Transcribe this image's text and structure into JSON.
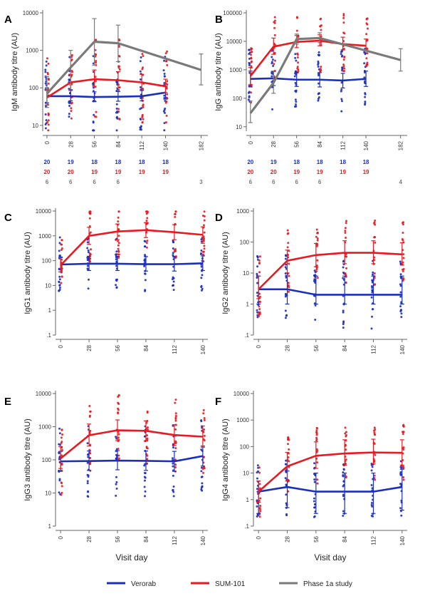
{
  "colors": {
    "verorab": "#1a2fbf",
    "sum101": "#e8191f",
    "phase1a": "#7a7a7a",
    "axis": "#666666"
  },
  "legend": [
    {
      "key": "verorab",
      "label": "Verorab"
    },
    {
      "key": "sum101",
      "label": "SUM-101"
    },
    {
      "key": "phase1a",
      "label": "Phase 1a study"
    }
  ],
  "chart_data": [
    {
      "panel": "A",
      "type": "line",
      "ylabel": "IgM antibody titre (AU)",
      "xlabel": "",
      "yscale": "log",
      "ylim": [
        7,
        10000
      ],
      "yticks": [
        "10",
        "100",
        "1000",
        "10000"
      ],
      "yticks_values": [
        10,
        100,
        1000,
        10000
      ],
      "xlim": [
        -5,
        190
      ],
      "xticks": [
        0,
        28,
        56,
        84,
        112,
        140,
        182
      ],
      "series": [
        {
          "key": "verorab",
          "x": [
            0,
            28,
            56,
            84,
            112,
            140
          ],
          "y": [
            60,
            60,
            57,
            58,
            60,
            75
          ],
          "err_low": [
            40,
            45,
            43,
            44,
            45,
            50
          ],
          "err_high": [
            100,
            85,
            78,
            80,
            85,
            110
          ]
        },
        {
          "key": "sum101",
          "x": [
            0,
            28,
            56,
            84,
            112,
            140
          ],
          "y": [
            55,
            140,
            170,
            160,
            140,
            110
          ],
          "err_low": [
            35,
            90,
            110,
            100,
            90,
            75
          ],
          "err_high": [
            85,
            230,
            300,
            270,
            230,
            170
          ]
        },
        {
          "key": "phase1a",
          "x": [
            0,
            28,
            56,
            84,
            182
          ],
          "y": [
            70,
            350,
            1700,
            1550,
            300
          ],
          "err_low": [
            30,
            120,
            400,
            500,
            120
          ],
          "err_high": [
            200,
            1000,
            7000,
            4700,
            800
          ]
        }
      ],
      "counts": [
        {
          "key": "verorab",
          "x": [
            0,
            28,
            56,
            84,
            112,
            140
          ],
          "labels": [
            "20",
            "19",
            "18",
            "18",
            "18",
            "18"
          ]
        },
        {
          "key": "sum101",
          "x": [
            0,
            28,
            56,
            84,
            112,
            140
          ],
          "labels": [
            "20",
            "20",
            "19",
            "19",
            "19",
            "19"
          ]
        },
        {
          "key": "phase1a",
          "x": [
            0,
            28,
            56,
            84,
            182
          ],
          "labels": [
            "6",
            "6",
            "6",
            "6",
            "3"
          ]
        }
      ]
    },
    {
      "panel": "B",
      "type": "line",
      "ylabel": "IgG antibody titre (AU)",
      "xlabel": "",
      "yscale": "log",
      "ylim": [
        7,
        100000
      ],
      "yticks": [
        "10",
        "100",
        "1000",
        "10000",
        "100000"
      ],
      "yticks_values": [
        10,
        100,
        1000,
        10000,
        100000
      ],
      "xlim": [
        -5,
        190
      ],
      "xticks": [
        0,
        28,
        56,
        84,
        112,
        140,
        182
      ],
      "series": [
        {
          "key": "verorab",
          "x": [
            0,
            28,
            56,
            84,
            112,
            140
          ],
          "y": [
            480,
            500,
            450,
            450,
            420,
            480
          ],
          "err_low": [
            250,
            280,
            260,
            250,
            230,
            260
          ],
          "err_high": [
            900,
            900,
            800,
            800,
            750,
            900
          ]
        },
        {
          "key": "sum101",
          "x": [
            0,
            28,
            56,
            84,
            112,
            140
          ],
          "y": [
            600,
            6500,
            9500,
            10500,
            8000,
            7000
          ],
          "err_low": [
            300,
            3500,
            6000,
            7000,
            5000,
            4500
          ],
          "err_high": [
            1200,
            13000,
            16000,
            17000,
            14000,
            12000
          ]
        },
        {
          "key": "phase1a",
          "x": [
            0,
            28,
            56,
            84,
            182
          ],
          "y": [
            30,
            350,
            12000,
            13000,
            2200
          ],
          "err_low": [
            14,
            150,
            8000,
            9000,
            900
          ],
          "err_high": [
            80,
            900,
            18000,
            20000,
            5500
          ]
        }
      ],
      "counts": [
        {
          "key": "verorab",
          "x": [
            0,
            28,
            56,
            84,
            112,
            140
          ],
          "labels": [
            "20",
            "19",
            "18",
            "18",
            "18",
            "18"
          ]
        },
        {
          "key": "sum101",
          "x": [
            0,
            28,
            56,
            84,
            112,
            140
          ],
          "labels": [
            "20",
            "20",
            "19",
            "19",
            "19",
            "19"
          ]
        },
        {
          "key": "phase1a",
          "x": [
            0,
            28,
            56,
            84,
            182
          ],
          "labels": [
            "6",
            "6",
            "6",
            "6",
            "4"
          ]
        }
      ]
    },
    {
      "panel": "C",
      "type": "line",
      "ylabel": "IgG1 antibody titre (AU)",
      "xlabel": "",
      "yscale": "log",
      "ylim": [
        0.1,
        10000
      ],
      "yticks": [
        ".1",
        "1",
        "10",
        "100",
        "1000",
        "10000"
      ],
      "yticks_values": [
        0.1,
        1,
        10,
        100,
        1000,
        10000
      ],
      "xlim": [
        -5,
        145
      ],
      "xticks": [
        0,
        28,
        56,
        84,
        112,
        140
      ],
      "series": [
        {
          "key": "verorab",
          "x": [
            0,
            28,
            56,
            84,
            112,
            140
          ],
          "y": [
            70,
            75,
            75,
            72,
            72,
            78
          ],
          "err_low": [
            35,
            40,
            40,
            38,
            38,
            40
          ],
          "err_high": [
            140,
            150,
            150,
            145,
            145,
            155
          ]
        },
        {
          "key": "sum101",
          "x": [
            0,
            28,
            56,
            84,
            112,
            140
          ],
          "y": [
            65,
            1000,
            1500,
            1700,
            1400,
            1100
          ],
          "err_low": [
            35,
            450,
            700,
            850,
            700,
            500
          ],
          "err_high": [
            130,
            2200,
            3000,
            3400,
            2800,
            2300
          ]
        }
      ]
    },
    {
      "panel": "D",
      "type": "line",
      "ylabel": "IgG2 antibody titre (AU)",
      "xlabel": "",
      "yscale": "log",
      "ylim": [
        0.1,
        1000
      ],
      "yticks": [
        ".1",
        "1",
        "10",
        "100",
        "1000"
      ],
      "yticks_values": [
        0.1,
        1,
        10,
        100,
        1000
      ],
      "xlim": [
        -5,
        145
      ],
      "xticks": [
        0,
        28,
        56,
        84,
        112,
        140
      ],
      "series": [
        {
          "key": "verorab",
          "x": [
            0,
            28,
            56,
            84,
            112,
            140
          ],
          "y": [
            3,
            3,
            2,
            2,
            2,
            2
          ],
          "err_low": [
            1,
            1,
            1,
            1,
            1,
            1
          ],
          "err_high": [
            8,
            10,
            8,
            8,
            8,
            8
          ]
        },
        {
          "key": "sum101",
          "x": [
            0,
            28,
            56,
            84,
            112,
            140
          ],
          "y": [
            3,
            25,
            38,
            45,
            45,
            40
          ],
          "err_low": [
            1.5,
            10,
            16,
            20,
            20,
            18
          ],
          "err_high": [
            8,
            55,
            90,
            110,
            110,
            95
          ]
        }
      ]
    },
    {
      "panel": "E",
      "type": "line",
      "ylabel": "IgG3 antibody titre (AU)",
      "xlabel": "Visit day",
      "yscale": "log",
      "ylim": [
        1,
        10000
      ],
      "yticks": [
        "1",
        "10",
        "100",
        "1000",
        "10000"
      ],
      "yticks_values": [
        1,
        10,
        100,
        1000,
        10000
      ],
      "xlim": [
        -5,
        145
      ],
      "xticks": [
        0,
        28,
        56,
        84,
        112,
        140
      ],
      "series": [
        {
          "key": "verorab",
          "x": [
            0,
            28,
            56,
            84,
            112,
            140
          ],
          "y": [
            90,
            92,
            95,
            93,
            90,
            130
          ],
          "err_low": [
            45,
            48,
            50,
            48,
            45,
            65
          ],
          "err_high": [
            180,
            185,
            190,
            185,
            180,
            260
          ]
        },
        {
          "key": "sum101",
          "x": [
            0,
            28,
            56,
            84,
            112,
            140
          ],
          "y": [
            110,
            550,
            780,
            750,
            560,
            500
          ],
          "err_low": [
            55,
            260,
            380,
            370,
            270,
            240
          ],
          "err_high": [
            250,
            1200,
            1600,
            1500,
            1150,
            1050
          ]
        }
      ]
    },
    {
      "panel": "F",
      "type": "line",
      "ylabel": "IgG4 antibody titre (AU)",
      "xlabel": "Visit day",
      "yscale": "log",
      "ylim": [
        0.1,
        10000
      ],
      "yticks": [
        ".1",
        "1",
        "10",
        "100",
        "1000",
        "10000"
      ],
      "yticks_values": [
        0.1,
        1,
        10,
        100,
        1000,
        10000
      ],
      "xlim": [
        -5,
        145
      ],
      "xticks": [
        0,
        28,
        56,
        84,
        112,
        140
      ],
      "series": [
        {
          "key": "verorab",
          "x": [
            0,
            28,
            56,
            84,
            112,
            140
          ],
          "y": [
            2,
            3,
            2,
            2,
            2,
            3
          ],
          "err_low": [
            0.3,
            0.5,
            0.3,
            0.3,
            0.3,
            0.4
          ],
          "err_high": [
            5,
            12,
            10,
            10,
            10,
            14
          ]
        },
        {
          "key": "sum101",
          "x": [
            0,
            28,
            56,
            84,
            112,
            140
          ],
          "y": [
            2,
            18,
            45,
            55,
            60,
            58
          ],
          "err_low": [
            0.8,
            5,
            15,
            20,
            22,
            20
          ],
          "err_high": [
            5,
            60,
            150,
            180,
            190,
            180
          ]
        }
      ]
    }
  ]
}
